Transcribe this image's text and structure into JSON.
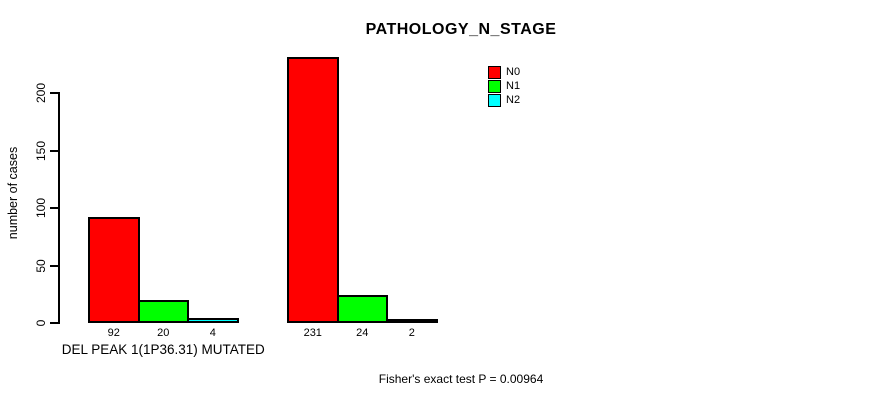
{
  "title": "PATHOLOGY_N_STAGE",
  "chart_data": {
    "type": "bar",
    "title": "PATHOLOGY_N_STAGE",
    "xlabel": "",
    "ylabel": "number of cases",
    "ylim": [
      0,
      235
    ],
    "y_ticks": [
      0,
      50,
      100,
      150,
      200
    ],
    "grid": false,
    "legend_position": "top-right",
    "series_names": [
      "N0",
      "N1",
      "N2"
    ],
    "series_colors": [
      "#FF0000",
      "#00FF00",
      "#00FFFF"
    ],
    "groups": [
      {
        "label": "DEL PEAK 1(1P36.31) MUTATED",
        "values": [
          92,
          20,
          4
        ]
      },
      {
        "label": "",
        "values": [
          231,
          24,
          2
        ]
      }
    ],
    "bar_value_labels": [
      [
        "92",
        "20",
        "4"
      ],
      [
        "231",
        "24",
        "2"
      ]
    ],
    "annotation": "Fisher's exact test P = 0.00964"
  }
}
